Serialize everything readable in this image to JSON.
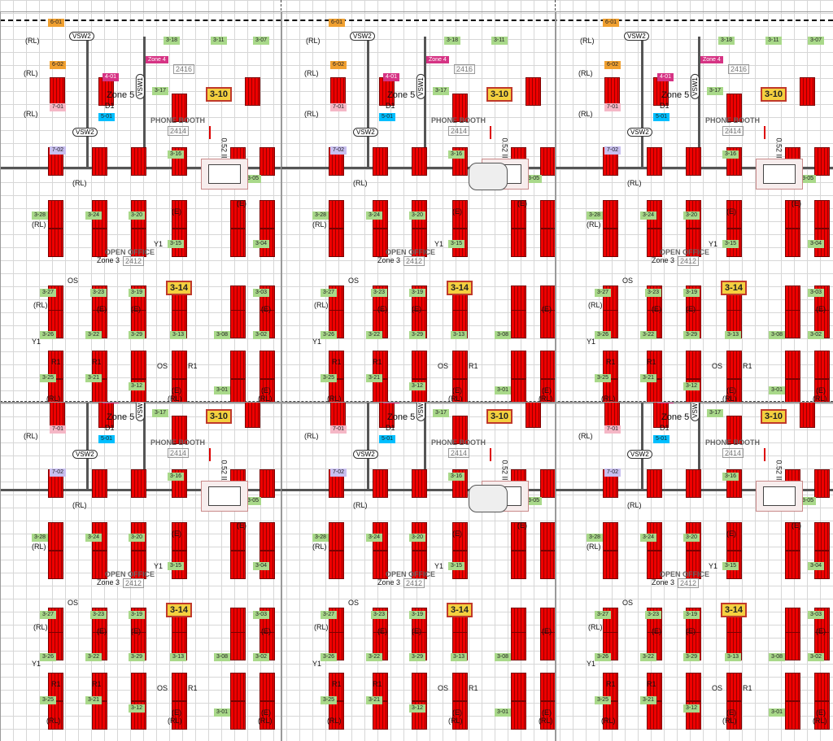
{
  "labels": {
    "open_office": "OPEN OFFICE",
    "open_office_num": "2412",
    "phone_booth": "PHONE BOOTH",
    "phone_booth_num": "2414",
    "zone3": "Zone 3",
    "zone4": "Zone 4",
    "zone4_num": "2416",
    "zone5": "Zone 5",
    "rl": "(RL)",
    "e": "(E)",
    "r1": "R1",
    "d1": "D1",
    "y1": "Y1",
    "os": "OS",
    "vsw1": "VSW1",
    "vsw2": "VSW2",
    "height": "0.52 II",
    "highlight_a": "3-10",
    "highlight_b": "3-14"
  },
  "tags": [
    "3-18",
    "3-11",
    "3-07",
    "3-17",
    "3-16",
    "3-05",
    "3-28",
    "3-24",
    "3-20",
    "3-15",
    "3-04",
    "3-27",
    "3-23",
    "3-19",
    "3-03",
    "3-26",
    "3-22",
    "3-29",
    "3-13",
    "3-08",
    "3-02",
    "3-25",
    "3-21",
    "3-12",
    "3-01"
  ],
  "colored_tags": {
    "t601": "6-01",
    "t602": "6-02",
    "t401": "4-01",
    "t501": "5-01",
    "t701": "7-01",
    "t702": "7-02"
  },
  "colors": {
    "fixture": "#ee0000",
    "tag": "#a9d98a",
    "highlight": "#f4d03f",
    "zone": "#d63384",
    "control": "#00bfff",
    "orange": "#f0a030",
    "lavender": "#c8bfef"
  }
}
